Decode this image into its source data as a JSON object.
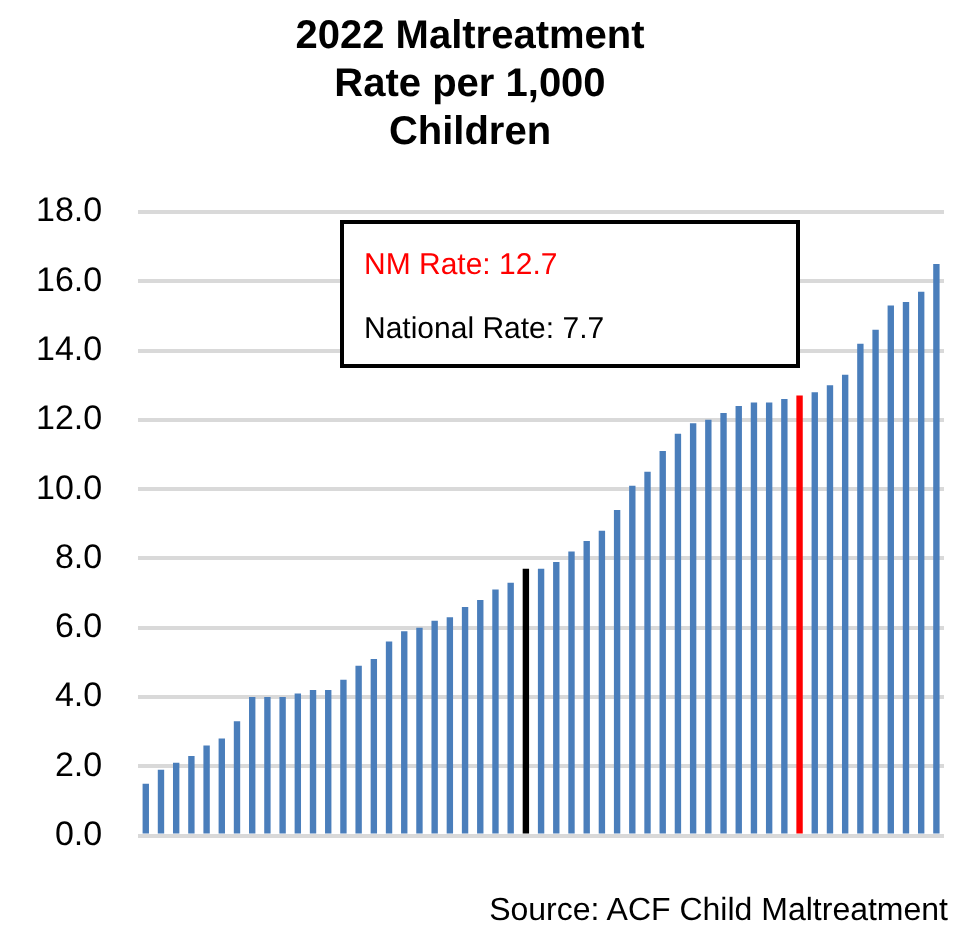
{
  "chart_data": {
    "type": "bar",
    "title": "2022 Maltreatment Rate per 1,000 Children",
    "categories": [
      null,
      null,
      null,
      null,
      null,
      null,
      null,
      null,
      null,
      null,
      null,
      null,
      null,
      null,
      null,
      null,
      null,
      null,
      null,
      null,
      null,
      null,
      null,
      null,
      null,
      null,
      null,
      null,
      null,
      null,
      null,
      null,
      null,
      null,
      null,
      null,
      null,
      null,
      null,
      null,
      null,
      null,
      null,
      null,
      null,
      null,
      null,
      null,
      null,
      null,
      null,
      null,
      null
    ],
    "values": [
      1.5,
      1.9,
      2.1,
      2.3,
      2.6,
      2.8,
      3.3,
      4.0,
      4.0,
      4.0,
      4.1,
      4.2,
      4.2,
      4.5,
      4.9,
      5.1,
      5.6,
      5.9,
      6.0,
      6.2,
      6.3,
      6.6,
      6.8,
      7.1,
      7.3,
      7.7,
      7.7,
      7.9,
      8.2,
      8.5,
      8.8,
      9.4,
      10.1,
      10.5,
      11.1,
      11.6,
      11.9,
      12.0,
      12.2,
      12.4,
      12.5,
      12.5,
      12.6,
      12.7,
      12.8,
      13.0,
      13.3,
      14.2,
      14.6,
      15.3,
      15.4,
      15.7,
      16.5
    ],
    "colors": [
      "#4a7ebb",
      "#4a7ebb",
      "#4a7ebb",
      "#4a7ebb",
      "#4a7ebb",
      "#4a7ebb",
      "#4a7ebb",
      "#4a7ebb",
      "#4a7ebb",
      "#4a7ebb",
      "#4a7ebb",
      "#4a7ebb",
      "#4a7ebb",
      "#4a7ebb",
      "#4a7ebb",
      "#4a7ebb",
      "#4a7ebb",
      "#4a7ebb",
      "#4a7ebb",
      "#4a7ebb",
      "#4a7ebb",
      "#4a7ebb",
      "#4a7ebb",
      "#4a7ebb",
      "#4a7ebb",
      "#000000",
      "#4a7ebb",
      "#4a7ebb",
      "#4a7ebb",
      "#4a7ebb",
      "#4a7ebb",
      "#4a7ebb",
      "#4a7ebb",
      "#4a7ebb",
      "#4a7ebb",
      "#4a7ebb",
      "#4a7ebb",
      "#4a7ebb",
      "#4a7ebb",
      "#4a7ebb",
      "#4a7ebb",
      "#4a7ebb",
      "#4a7ebb",
      "#ff0000",
      "#4a7ebb",
      "#4a7ebb",
      "#4a7ebb",
      "#4a7ebb",
      "#4a7ebb",
      "#4a7ebb",
      "#4a7ebb",
      "#4a7ebb",
      "#4a7ebb"
    ],
    "ylim": [
      0,
      18
    ],
    "yticks": [
      {
        "value": 0,
        "label": "0.0"
      },
      {
        "value": 2,
        "label": "2.0"
      },
      {
        "value": 4,
        "label": "4.0"
      },
      {
        "value": 6,
        "label": "6.0"
      },
      {
        "value": 8,
        "label": "8.0"
      },
      {
        "value": 10,
        "label": "10.0"
      },
      {
        "value": 12,
        "label": "12.0"
      },
      {
        "value": 14,
        "label": "14.0"
      },
      {
        "value": 16,
        "label": "16.0"
      },
      {
        "value": 18,
        "label": "18.0"
      }
    ],
    "grid": "y",
    "annotations": [
      "NM Rate: 12.7",
      "National Rate: 7.7",
      "Source: ACF Child Maltreatment"
    ]
  }
}
